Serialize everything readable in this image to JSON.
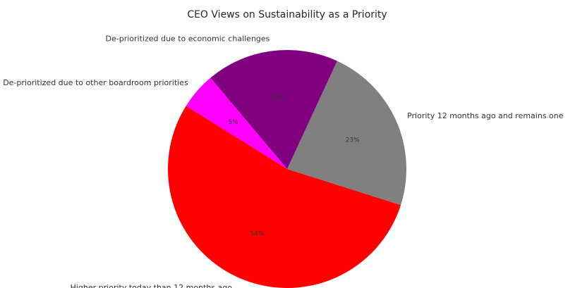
{
  "chart_data": {
    "type": "pie",
    "title": "CEO Views on Sustainability as a Priority",
    "start_angle": 130,
    "direction": "counterclockwise",
    "slices": [
      {
        "label": "De-prioritized due to other boardroom priorities",
        "value": 5,
        "pct_label": "5%",
        "color": "#FF00FF"
      },
      {
        "label": "Higher priority today than 12 months ago",
        "value": 54,
        "pct_label": "54%",
        "color": "#FF0000"
      },
      {
        "label": "Priority 12 months ago and remains one",
        "value": 23,
        "pct_label": "23%",
        "color": "#808080"
      },
      {
        "label": "De-prioritized due to economic challenges",
        "value": 18,
        "pct_label": "18%",
        "color": "#800080"
      }
    ]
  }
}
